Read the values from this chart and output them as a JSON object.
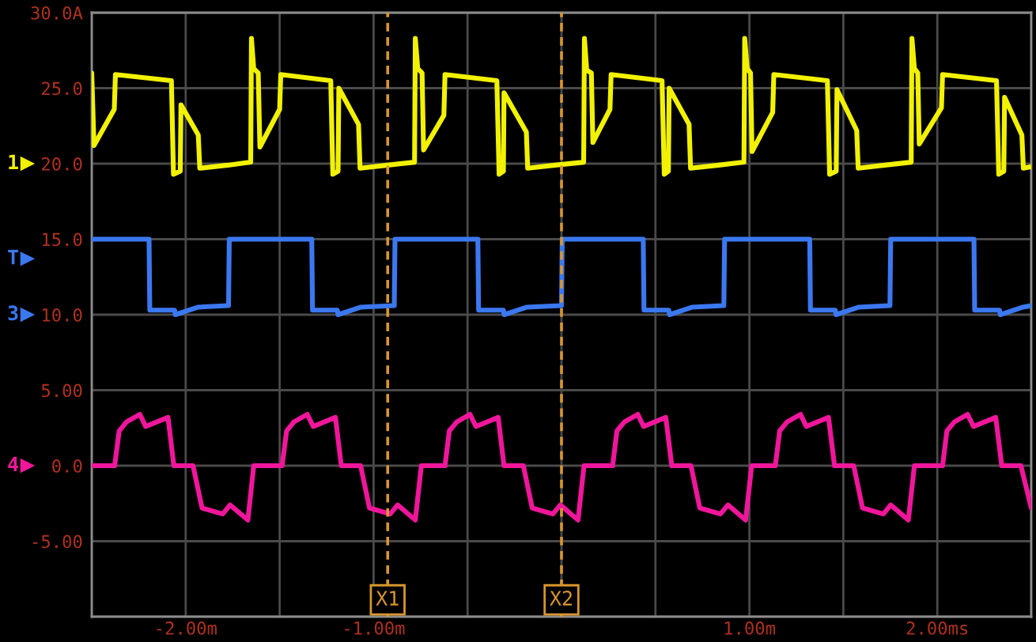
{
  "chart_data": {
    "type": "line",
    "xlim": [
      -2.5,
      2.5
    ],
    "ylim": [
      -10,
      30
    ],
    "xticks": [
      {
        "value": -2.5,
        "label": null
      },
      {
        "value": -2,
        "label": "-2.00m"
      },
      {
        "value": -1.5,
        "label": null
      },
      {
        "value": -1,
        "label": "-1.00m"
      },
      {
        "value": -0.5,
        "label": null
      },
      {
        "value": 0,
        "label": null
      },
      {
        "value": 0.5,
        "label": null
      },
      {
        "value": 1,
        "label": "1.00m"
      },
      {
        "value": 1.5,
        "label": null
      },
      {
        "value": 2,
        "label": "2.00ms"
      },
      {
        "value": 2.5,
        "label": null
      }
    ],
    "yticks": [
      {
        "value": 30,
        "label": "30.0A"
      },
      {
        "value": 25,
        "label": "25.0"
      },
      {
        "value": 20,
        "label": "20.0"
      },
      {
        "value": 15,
        "label": "15.0"
      },
      {
        "value": 10,
        "label": "10.0"
      },
      {
        "value": 5,
        "label": "5.00"
      },
      {
        "value": 0,
        "label": "0.0"
      },
      {
        "value": -5,
        "label": "-5.00"
      },
      {
        "value": -10,
        "label": null
      }
    ],
    "grid": true,
    "series": [
      {
        "color": "#f2f200",
        "x": [
          -2.5,
          -2.488,
          -2.38,
          -2.374,
          -2.076,
          -2.065,
          -2.029,
          -2.025,
          -1.933,
          -1.925,
          -1.776,
          -1.654,
          -1.65,
          -1.638,
          -1.614,
          -1.605,
          -1.5,
          -1.494,
          -1.228,
          -1.217,
          -1.189,
          -1.185,
          -1.08,
          -1.072,
          -0.925,
          -0.782,
          -0.778,
          -0.765,
          -0.742,
          -0.734,
          -0.626,
          -0.62,
          -0.344,
          -0.332,
          -0.309,
          -0.306,
          -0.187,
          -0.18,
          -0.035,
          0.118,
          0.122,
          0.134,
          0.159,
          0.167,
          0.258,
          0.264,
          0.535,
          0.547,
          0.569,
          0.573,
          0.679,
          0.687,
          0.836,
          0.971,
          0.975,
          0.988,
          1.006,
          1.014,
          1.124,
          1.13,
          1.415,
          1.427,
          1.462,
          1.466,
          1.571,
          1.579,
          1.72,
          1.861,
          1.865,
          1.878,
          1.896,
          1.904,
          2.022,
          2.028,
          2.315,
          2.327,
          2.354,
          2.358,
          2.45,
          2.458,
          2.5
        ],
        "values": [
          26.0,
          21.2,
          23.6,
          25.9,
          25.5,
          19.3,
          19.5,
          23.9,
          21.9,
          19.7,
          19.9,
          20.1,
          28.3,
          26.3,
          26.0,
          21.1,
          23.6,
          25.9,
          25.5,
          19.3,
          19.5,
          25.0,
          22.6,
          19.7,
          19.9,
          20.1,
          28.3,
          26.3,
          26.0,
          20.9,
          23.2,
          25.9,
          25.5,
          19.3,
          19.5,
          24.7,
          22.1,
          19.7,
          19.9,
          20.1,
          28.3,
          26.2,
          26.0,
          21.4,
          23.6,
          25.9,
          25.5,
          19.3,
          19.5,
          25.0,
          22.6,
          19.7,
          19.9,
          20.1,
          28.3,
          26.3,
          26.0,
          20.8,
          23.4,
          25.9,
          25.5,
          19.3,
          19.5,
          24.9,
          22.2,
          19.7,
          19.9,
          20.1,
          28.3,
          26.3,
          26.0,
          21.3,
          23.7,
          25.9,
          25.5,
          19.3,
          19.5,
          24.4,
          21.9,
          19.7,
          19.8
        ]
      },
      {
        "color": "#3b78f0",
        "x": [
          -2.5,
          -2.195,
          -2.191,
          -2.059,
          -2.055,
          -1.933,
          -1.772,
          -1.768,
          -1.329,
          -1.325,
          -1.193,
          -1.189,
          -1.067,
          -0.89,
          -0.886,
          -0.445,
          -0.441,
          -0.309,
          -0.305,
          -0.183,
          0.0,
          0.004,
          0.435,
          0.439,
          0.571,
          0.575,
          0.697,
          0.864,
          0.868,
          1.321,
          1.325,
          1.457,
          1.461,
          1.583,
          1.748,
          1.752,
          2.195,
          2.199,
          2.331,
          2.335,
          2.457,
          2.5
        ],
        "values": [
          15.0,
          15.0,
          10.3,
          10.3,
          10.0,
          10.5,
          10.6,
          15.0,
          15.0,
          10.3,
          10.3,
          10.0,
          10.5,
          10.6,
          15.0,
          15.0,
          10.3,
          10.3,
          10.0,
          10.5,
          10.6,
          15.0,
          15.0,
          10.3,
          10.3,
          10.0,
          10.5,
          10.6,
          15.0,
          15.0,
          10.3,
          10.3,
          10.0,
          10.5,
          10.6,
          15.0,
          15.0,
          10.3,
          10.3,
          10.0,
          10.5,
          10.6
        ]
      },
      {
        "color": "#f0169b",
        "x": [
          -2.5,
          -2.378,
          -2.354,
          -2.315,
          -2.244,
          -2.213,
          -2.094,
          -2.063,
          -1.961,
          -1.913,
          -1.803,
          -1.764,
          -1.669,
          -1.638,
          -1.487,
          -1.463,
          -1.424,
          -1.353,
          -1.321,
          -1.203,
          -1.172,
          -1.069,
          -1.022,
          -0.912,
          -0.872,
          -0.778,
          -0.746,
          -0.62,
          -0.597,
          -0.557,
          -0.487,
          -0.455,
          -0.337,
          -0.306,
          -0.203,
          -0.156,
          -0.046,
          -0.006,
          0.088,
          0.12,
          0.272,
          0.295,
          0.335,
          0.406,
          0.437,
          0.555,
          0.587,
          0.689,
          0.736,
          0.846,
          0.886,
          0.98,
          1.012,
          1.138,
          1.161,
          1.201,
          1.272,
          1.303,
          1.421,
          1.453,
          1.555,
          1.602,
          1.713,
          1.752,
          1.846,
          1.878,
          2.028,
          2.051,
          2.091,
          2.161,
          2.193,
          2.311,
          2.343,
          2.445,
          2.5
        ],
        "values": [
          0.0,
          0.0,
          2.3,
          2.9,
          3.4,
          2.6,
          3.2,
          0.0,
          0.0,
          -2.8,
          -3.2,
          -2.6,
          -3.6,
          0.0,
          0.0,
          2.3,
          2.9,
          3.4,
          2.6,
          3.2,
          0.0,
          0.0,
          -2.8,
          -3.2,
          -2.6,
          -3.6,
          0.0,
          0.0,
          2.3,
          2.9,
          3.4,
          2.6,
          3.2,
          0.0,
          0.0,
          -2.8,
          -3.2,
          -2.6,
          -3.6,
          0.0,
          0.0,
          2.3,
          2.9,
          3.4,
          2.6,
          3.2,
          0.0,
          0.0,
          -2.8,
          -3.2,
          -2.6,
          -3.6,
          0.0,
          0.0,
          2.3,
          2.9,
          3.4,
          2.6,
          3.2,
          0.0,
          0.0,
          -2.8,
          -3.2,
          -2.6,
          -3.6,
          0.0,
          0.0,
          2.3,
          2.9,
          3.4,
          2.6,
          3.2,
          0.0,
          0.0,
          -2.8
        ]
      }
    ],
    "ref_lines": [
      {
        "axis": "x",
        "value": -0.925,
        "label": "X1",
        "color": "#d8962e",
        "line_style": "dashed"
      },
      {
        "axis": "x",
        "value": 0.0,
        "label": "X2",
        "color": "#d8962e",
        "line_style": "dashed"
      }
    ],
    "annotations": [
      "1",
      "T",
      "3",
      "4"
    ]
  }
}
